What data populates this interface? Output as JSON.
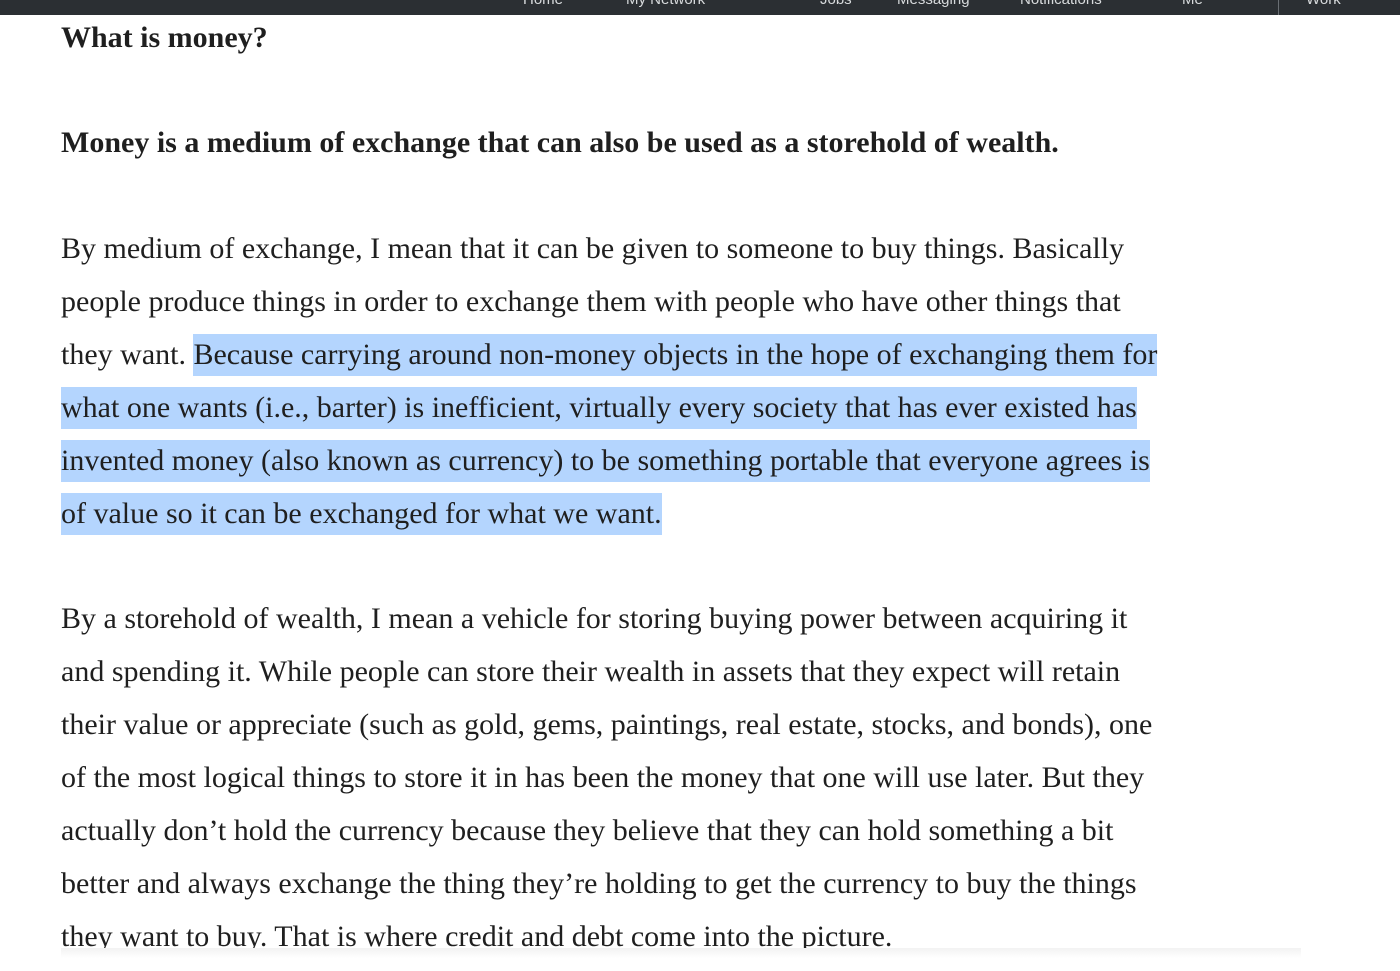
{
  "nav": {
    "items": [
      {
        "label": "Home"
      },
      {
        "label": "My Network"
      },
      {
        "label": "Jobs"
      },
      {
        "label": "Messaging"
      },
      {
        "label": "Notifications"
      },
      {
        "label": "Me"
      },
      {
        "label": "Work"
      }
    ]
  },
  "article": {
    "question": "What is money?",
    "thesis": "Money is a medium of exchange that can also be used as a storehold of wealth.",
    "paragraph1": {
      "line1": "By medium of exchange, I mean that it can be given to someone to buy things. Basically",
      "line2": "people produce things in order to exchange them with people who have other things that",
      "line3_unselected": "they want. ",
      "line3_selected": "Because carrying around non-money objects in the hope of exchanging them for",
      "line4_selected": "what one wants (i.e., barter) is inefficient, virtually every society that has ever existed has",
      "line5_selected": "invented money (also known as currency) to be something portable that everyone agrees is",
      "line6_selected": "of value so it can be exchanged for what we want. "
    },
    "paragraph2": {
      "line1": "By a storehold of wealth, I mean a vehicle for storing buying power between acquiring it",
      "line2": "and spending it.  While people can store their wealth in assets that they expect will retain",
      "line3": "their value or appreciate (such as gold, gems, paintings, real estate, stocks, and bonds), one",
      "line4": "of the most logical things to store it in has been the money that one will use later. But they",
      "line5": "actually don’t hold the currency because they believe that they can hold something a bit",
      "line6": "better and always exchange the thing they’re holding to get the currency to buy the things",
      "line7": "they want to buy.  That is where credit and debt come into the picture."
    }
  },
  "colors": {
    "selection": "#b4d5fe",
    "text": "#1f1f1f",
    "navbar": "#2b2f33"
  }
}
